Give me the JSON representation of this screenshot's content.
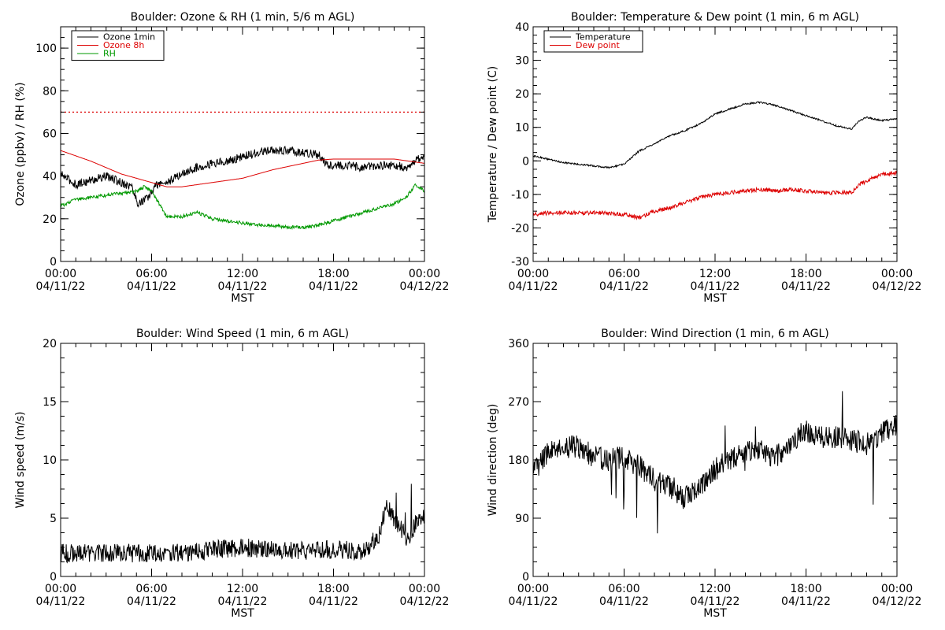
{
  "colors": {
    "black": "#000000",
    "red": "#dd0000",
    "green": "#009900"
  },
  "chart_data": [
    {
      "type": "line",
      "title": "Boulder: Ozone & RH (1 min, 5/6 m AGL)",
      "ylabel": "Ozone (ppbv) / RH (%)",
      "xlabel": "MST",
      "ylim": [
        0,
        110
      ],
      "y_ticks": [
        0,
        20,
        40,
        60,
        80,
        100
      ],
      "x_range_hours": [
        0,
        24
      ],
      "x_ticks": [
        {
          "time": "00:00",
          "date": "04/11/22"
        },
        {
          "time": "06:00",
          "date": "04/11/22"
        },
        {
          "time": "12:00",
          "date": "04/11/22"
        },
        {
          "time": "18:00",
          "date": "04/11/22"
        },
        {
          "time": "00:00",
          "date": "04/12/22"
        }
      ],
      "legend": {
        "placement": "top-left"
      },
      "reference_lines": [
        {
          "y": 70,
          "color": "#dd0000",
          "style": "dotted"
        }
      ],
      "series": [
        {
          "name": "Ozone 1min",
          "color": "#000000",
          "noise": 2.0,
          "legend": true,
          "points": [
            [
              0,
              41
            ],
            [
              1,
              36
            ],
            [
              2,
              38
            ],
            [
              3,
              40
            ],
            [
              4,
              37
            ],
            [
              4.7,
              35
            ],
            [
              5.1,
              27
            ],
            [
              5.8,
              30
            ],
            [
              6.3,
              36
            ],
            [
              7,
              37
            ],
            [
              8,
              41
            ],
            [
              9,
              44
            ],
            [
              10,
              46
            ],
            [
              11,
              47
            ],
            [
              12,
              49
            ],
            [
              13,
              51
            ],
            [
              14,
              52
            ],
            [
              15,
              52
            ],
            [
              16,
              51
            ],
            [
              17,
              50
            ],
            [
              17.5,
              46
            ],
            [
              18,
              45
            ],
            [
              19,
              45
            ],
            [
              20,
              44
            ],
            [
              21,
              45
            ],
            [
              22,
              45
            ],
            [
              23,
              44
            ],
            [
              23.5,
              48
            ],
            [
              24,
              49
            ]
          ]
        },
        {
          "name": "Ozone 8h",
          "color": "#dd0000",
          "noise": 0,
          "legend": true,
          "points": [
            [
              0,
              52
            ],
            [
              2,
              47
            ],
            [
              4,
              41
            ],
            [
              6,
              37
            ],
            [
              7,
              35
            ],
            [
              8,
              35
            ],
            [
              10,
              37
            ],
            [
              12,
              39
            ],
            [
              14,
              43
            ],
            [
              16,
              46
            ],
            [
              17,
              47.5
            ],
            [
              18,
              48
            ],
            [
              20,
              48
            ],
            [
              22,
              48
            ],
            [
              24,
              46
            ]
          ]
        },
        {
          "name": "RH",
          "color": "#009900",
          "noise": 0.8,
          "legend": true,
          "points": [
            [
              0,
              26
            ],
            [
              1,
              29
            ],
            [
              2,
              30
            ],
            [
              3,
              31
            ],
            [
              4,
              32
            ],
            [
              5,
              33
            ],
            [
              5.5,
              35
            ],
            [
              6,
              33
            ],
            [
              6.5,
              27
            ],
            [
              7,
              21
            ],
            [
              8,
              21
            ],
            [
              9,
              23
            ],
            [
              10,
              20
            ],
            [
              11,
              19
            ],
            [
              12,
              18
            ],
            [
              13,
              17
            ],
            [
              14,
              17
            ],
            [
              15,
              16
            ],
            [
              16,
              16
            ],
            [
              17,
              17
            ],
            [
              18,
              19
            ],
            [
              19,
              21
            ],
            [
              20,
              23
            ],
            [
              21,
              25
            ],
            [
              22,
              27
            ],
            [
              22.8,
              30
            ],
            [
              23.4,
              36
            ],
            [
              24,
              33
            ]
          ]
        }
      ]
    },
    {
      "type": "line",
      "title": "Boulder: Temperature & Dew point (1 min, 6 m AGL)",
      "ylabel": "Temperature / Dew point (C)",
      "xlabel": "MST",
      "ylim": [
        -30,
        40
      ],
      "y_ticks": [
        -30,
        -20,
        -10,
        0,
        10,
        20,
        30,
        40
      ],
      "x_range_hours": [
        0,
        24
      ],
      "x_ticks": [
        {
          "time": "00:00",
          "date": "04/11/22"
        },
        {
          "time": "06:00",
          "date": "04/11/22"
        },
        {
          "time": "12:00",
          "date": "04/11/22"
        },
        {
          "time": "18:00",
          "date": "04/11/22"
        },
        {
          "time": "00:00",
          "date": "04/12/22"
        }
      ],
      "legend": {
        "placement": "top-left"
      },
      "reference_lines": [],
      "series": [
        {
          "name": "Temperature",
          "color": "#000000",
          "noise": 0.25,
          "legend": true,
          "points": [
            [
              0,
              1.5
            ],
            [
              1,
              0.5
            ],
            [
              2,
              -0.5
            ],
            [
              3,
              -1
            ],
            [
              4,
              -1.5
            ],
            [
              5,
              -2
            ],
            [
              6,
              -1
            ],
            [
              7,
              3
            ],
            [
              8,
              5
            ],
            [
              9,
              7.5
            ],
            [
              10,
              9
            ],
            [
              11,
              11
            ],
            [
              12,
              14
            ],
            [
              13,
              15.5
            ],
            [
              14,
              17
            ],
            [
              15,
              17.5
            ],
            [
              16,
              16.5
            ],
            [
              17,
              15
            ],
            [
              18,
              13.5
            ],
            [
              19,
              12
            ],
            [
              20,
              10.5
            ],
            [
              21,
              9.5
            ],
            [
              21.5,
              12
            ],
            [
              22,
              13
            ],
            [
              23,
              12
            ],
            [
              24,
              12.5
            ]
          ]
        },
        {
          "name": "Dew point",
          "color": "#dd0000",
          "noise": 0.6,
          "legend": true,
          "points": [
            [
              0,
              -16
            ],
            [
              1,
              -15.5
            ],
            [
              2,
              -15.5
            ],
            [
              3,
              -15.5
            ],
            [
              4,
              -15.5
            ],
            [
              5,
              -15.5
            ],
            [
              6,
              -16
            ],
            [
              7,
              -17
            ],
            [
              8,
              -15
            ],
            [
              9,
              -14
            ],
            [
              10,
              -12.5
            ],
            [
              11,
              -11
            ],
            [
              12,
              -10
            ],
            [
              13,
              -9.5
            ],
            [
              14,
              -9
            ],
            [
              15,
              -8.5
            ],
            [
              16,
              -9
            ],
            [
              17,
              -8.5
            ],
            [
              18,
              -9
            ],
            [
              19,
              -9.5
            ],
            [
              20,
              -9.5
            ],
            [
              21,
              -9.5
            ],
            [
              21.5,
              -7
            ],
            [
              22,
              -6
            ],
            [
              23,
              -4
            ],
            [
              24,
              -3.5
            ]
          ]
        }
      ]
    },
    {
      "type": "line",
      "title": "Boulder: Wind Speed (1 min, 6 m AGL)",
      "ylabel": "Wind speed (m/s)",
      "xlabel": "MST",
      "ylim": [
        0,
        20
      ],
      "y_ticks": [
        0,
        5,
        10,
        15,
        20
      ],
      "x_range_hours": [
        0,
        24
      ],
      "x_ticks": [
        {
          "time": "00:00",
          "date": "04/11/22"
        },
        {
          "time": "06:00",
          "date": "04/11/22"
        },
        {
          "time": "12:00",
          "date": "04/11/22"
        },
        {
          "time": "18:00",
          "date": "04/11/22"
        },
        {
          "time": "00:00",
          "date": "04/12/22"
        }
      ],
      "legend": null,
      "reference_lines": [],
      "series": [
        {
          "name": "",
          "color": "#000000",
          "noise": 0.8,
          "legend": false,
          "floor": 0,
          "points": [
            [
              0,
              2
            ],
            [
              2,
              2
            ],
            [
              4,
              2
            ],
            [
              6,
              2
            ],
            [
              8,
              2
            ],
            [
              10,
              2.3
            ],
            [
              12,
              2.5
            ],
            [
              14,
              2.3
            ],
            [
              16,
              2.2
            ],
            [
              18,
              2.3
            ],
            [
              20,
              2.2
            ],
            [
              21,
              3.5
            ],
            [
              21.5,
              6
            ],
            [
              22,
              5
            ],
            [
              22.5,
              4
            ],
            [
              23,
              3
            ],
            [
              23.5,
              5
            ],
            [
              24,
              5
            ]
          ]
        }
      ]
    },
    {
      "type": "line",
      "title": "Boulder: Wind Direction (1 min, 6 m AGL)",
      "ylabel": "Wind direction (deg)",
      "xlabel": "MST",
      "ylim": [
        0,
        360
      ],
      "y_ticks": [
        0,
        90,
        180,
        270,
        360
      ],
      "x_range_hours": [
        0,
        24
      ],
      "x_ticks": [
        {
          "time": "00:00",
          "date": "04/11/22"
        },
        {
          "time": "06:00",
          "date": "04/11/22"
        },
        {
          "time": "12:00",
          "date": "04/11/22"
        },
        {
          "time": "18:00",
          "date": "04/11/22"
        },
        {
          "time": "00:00",
          "date": "04/12/22"
        }
      ],
      "legend": null,
      "reference_lines": [],
      "series": [
        {
          "name": "",
          "color": "#000000",
          "noise": 18,
          "legend": false,
          "points": [
            [
              0,
              160
            ],
            [
              1,
              195
            ],
            [
              2,
              200
            ],
            [
              3,
              200
            ],
            [
              4,
              185
            ],
            [
              5,
              180
            ],
            [
              6,
              185
            ],
            [
              7,
              170
            ],
            [
              8,
              150
            ],
            [
              9,
              140
            ],
            [
              10,
              120
            ],
            [
              11,
              140
            ],
            [
              12,
              165
            ],
            [
              13,
              180
            ],
            [
              14,
              190
            ],
            [
              15,
              195
            ],
            [
              16,
              185
            ],
            [
              17,
              205
            ],
            [
              18,
              220
            ],
            [
              19,
              215
            ],
            [
              20,
              215
            ],
            [
              21,
              210
            ],
            [
              22,
              205
            ],
            [
              23,
              220
            ],
            [
              24,
              235
            ]
          ]
        }
      ]
    }
  ]
}
